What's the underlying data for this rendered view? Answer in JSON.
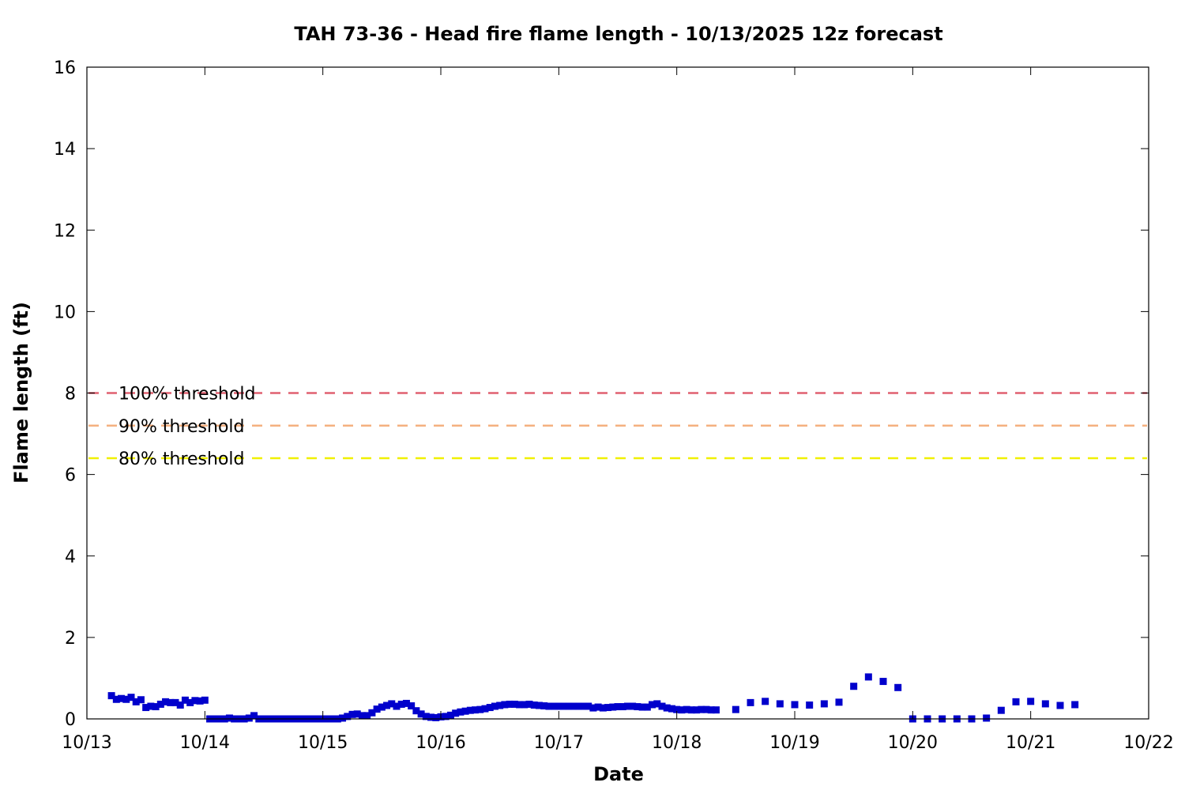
{
  "chart_data": {
    "type": "scatter",
    "title": "TAH 73-36 - Head fire flame length - 10/13/2025 12z forecast",
    "xlabel": "Date",
    "ylabel": "Flame length (ft)",
    "x_ticks": [
      "10/13",
      "10/14",
      "10/15",
      "10/16",
      "10/17",
      "10/18",
      "10/19",
      "10/20",
      "10/21",
      "10/22"
    ],
    "x_range_days": [
      "10/13",
      "10/22"
    ],
    "ylim": [
      0,
      16
    ],
    "y_ticks": [
      0,
      2,
      4,
      6,
      8,
      10,
      12,
      14,
      16
    ],
    "grid": false,
    "legend": "top-left",
    "marker_color": "#0000cc",
    "thresholds": [
      {
        "label": "100% threshold",
        "value": 8.0,
        "color": "#e06070"
      },
      {
        "label": "90% threshold",
        "value": 7.2,
        "color": "#f4b080"
      },
      {
        "label": "80% threshold",
        "value": 6.4,
        "color": "#f0f000"
      }
    ],
    "points": [
      [
        "10/13 05:00",
        0.57
      ],
      [
        "10/13 06:00",
        0.48
      ],
      [
        "10/13 07:00",
        0.5
      ],
      [
        "10/13 08:00",
        0.48
      ],
      [
        "10/13 09:00",
        0.53
      ],
      [
        "10/13 10:00",
        0.42
      ],
      [
        "10/13 11:00",
        0.47
      ],
      [
        "10/13 12:00",
        0.28
      ],
      [
        "10/13 13:00",
        0.31
      ],
      [
        "10/13 14:00",
        0.3
      ],
      [
        "10/13 15:00",
        0.36
      ],
      [
        "10/13 16:00",
        0.42
      ],
      [
        "10/13 17:00",
        0.4
      ],
      [
        "10/13 18:00",
        0.4
      ],
      [
        "10/13 19:00",
        0.34
      ],
      [
        "10/13 20:00",
        0.46
      ],
      [
        "10/13 21:00",
        0.4
      ],
      [
        "10/13 22:00",
        0.45
      ],
      [
        "10/13 23:00",
        0.44
      ],
      [
        "10/14 00:00",
        0.46
      ],
      [
        "10/14 01:00",
        0.0
      ],
      [
        "10/14 02:00",
        0.0
      ],
      [
        "10/14 03:00",
        0.0
      ],
      [
        "10/14 04:00",
        0.0
      ],
      [
        "10/14 05:00",
        0.02
      ],
      [
        "10/14 06:00",
        0.0
      ],
      [
        "10/14 07:00",
        0.0
      ],
      [
        "10/14 08:00",
        0.0
      ],
      [
        "10/14 09:00",
        0.02
      ],
      [
        "10/14 10:00",
        0.08
      ],
      [
        "10/14 11:00",
        0.0
      ],
      [
        "10/14 12:00",
        0.0
      ],
      [
        "10/14 13:00",
        0.0
      ],
      [
        "10/14 14:00",
        0.0
      ],
      [
        "10/14 15:00",
        0.0
      ],
      [
        "10/14 16:00",
        0.0
      ],
      [
        "10/14 17:00",
        0.0
      ],
      [
        "10/14 18:00",
        0.0
      ],
      [
        "10/14 19:00",
        0.0
      ],
      [
        "10/14 20:00",
        0.0
      ],
      [
        "10/14 21:00",
        0.0
      ],
      [
        "10/14 22:00",
        0.0
      ],
      [
        "10/14 23:00",
        0.0
      ],
      [
        "10/15 00:00",
        0.0
      ],
      [
        "10/15 01:00",
        0.0
      ],
      [
        "10/15 02:00",
        0.0
      ],
      [
        "10/15 03:00",
        0.0
      ],
      [
        "10/15 04:00",
        0.02
      ],
      [
        "10/15 05:00",
        0.06
      ],
      [
        "10/15 06:00",
        0.11
      ],
      [
        "10/15 07:00",
        0.12
      ],
      [
        "10/15 08:00",
        0.08
      ],
      [
        "10/15 09:00",
        0.08
      ],
      [
        "10/15 10:00",
        0.15
      ],
      [
        "10/15 11:00",
        0.24
      ],
      [
        "10/15 12:00",
        0.29
      ],
      [
        "10/15 13:00",
        0.33
      ],
      [
        "10/15 14:00",
        0.37
      ],
      [
        "10/15 15:00",
        0.31
      ],
      [
        "10/15 16:00",
        0.36
      ],
      [
        "10/15 17:00",
        0.38
      ],
      [
        "10/15 18:00",
        0.32
      ],
      [
        "10/15 19:00",
        0.2
      ],
      [
        "10/15 20:00",
        0.12
      ],
      [
        "10/15 21:00",
        0.06
      ],
      [
        "10/15 22:00",
        0.04
      ],
      [
        "10/15 23:00",
        0.03
      ],
      [
        "10/16 00:00",
        0.05
      ],
      [
        "10/16 01:00",
        0.06
      ],
      [
        "10/16 02:00",
        0.09
      ],
      [
        "10/16 03:00",
        0.14
      ],
      [
        "10/16 04:00",
        0.17
      ],
      [
        "10/16 05:00",
        0.19
      ],
      [
        "10/16 06:00",
        0.21
      ],
      [
        "10/16 07:00",
        0.22
      ],
      [
        "10/16 08:00",
        0.23
      ],
      [
        "10/16 09:00",
        0.25
      ],
      [
        "10/16 10:00",
        0.28
      ],
      [
        "10/16 11:00",
        0.31
      ],
      [
        "10/16 12:00",
        0.33
      ],
      [
        "10/16 13:00",
        0.35
      ],
      [
        "10/16 14:00",
        0.36
      ],
      [
        "10/16 15:00",
        0.36
      ],
      [
        "10/16 16:00",
        0.35
      ],
      [
        "10/16 17:00",
        0.35
      ],
      [
        "10/16 18:00",
        0.36
      ],
      [
        "10/16 19:00",
        0.34
      ],
      [
        "10/16 20:00",
        0.33
      ],
      [
        "10/16 21:00",
        0.32
      ],
      [
        "10/16 22:00",
        0.31
      ],
      [
        "10/16 23:00",
        0.31
      ],
      [
        "10/17 00:00",
        0.31
      ],
      [
        "10/17 01:00",
        0.31
      ],
      [
        "10/17 02:00",
        0.31
      ],
      [
        "10/17 03:00",
        0.31
      ],
      [
        "10/17 04:00",
        0.31
      ],
      [
        "10/17 05:00",
        0.31
      ],
      [
        "10/17 06:00",
        0.31
      ],
      [
        "10/17 07:00",
        0.27
      ],
      [
        "10/17 08:00",
        0.29
      ],
      [
        "10/17 09:00",
        0.27
      ],
      [
        "10/17 10:00",
        0.28
      ],
      [
        "10/17 11:00",
        0.29
      ],
      [
        "10/17 12:00",
        0.3
      ],
      [
        "10/17 13:00",
        0.3
      ],
      [
        "10/17 14:00",
        0.31
      ],
      [
        "10/17 15:00",
        0.31
      ],
      [
        "10/17 16:00",
        0.3
      ],
      [
        "10/17 17:00",
        0.29
      ],
      [
        "10/17 18:00",
        0.29
      ],
      [
        "10/17 19:00",
        0.35
      ],
      [
        "10/17 20:00",
        0.37
      ],
      [
        "10/17 21:00",
        0.31
      ],
      [
        "10/17 22:00",
        0.27
      ],
      [
        "10/17 23:00",
        0.25
      ],
      [
        "10/18 00:00",
        0.23
      ],
      [
        "10/18 01:00",
        0.22
      ],
      [
        "10/18 02:00",
        0.23
      ],
      [
        "10/18 03:00",
        0.22
      ],
      [
        "10/18 04:00",
        0.22
      ],
      [
        "10/18 05:00",
        0.23
      ],
      [
        "10/18 06:00",
        0.23
      ],
      [
        "10/18 07:00",
        0.22
      ],
      [
        "10/18 08:00",
        0.22
      ],
      [
        "10/18 12:00",
        0.23
      ],
      [
        "10/18 15:00",
        0.4
      ],
      [
        "10/18 18:00",
        0.43
      ],
      [
        "10/18 21:00",
        0.37
      ],
      [
        "10/19 00:00",
        0.35
      ],
      [
        "10/19 03:00",
        0.34
      ],
      [
        "10/19 06:00",
        0.37
      ],
      [
        "10/19 09:00",
        0.41
      ],
      [
        "10/19 12:00",
        0.8
      ],
      [
        "10/19 15:00",
        1.03
      ],
      [
        "10/19 18:00",
        0.92
      ],
      [
        "10/19 21:00",
        0.77
      ],
      [
        "10/20 00:00",
        0.0
      ],
      [
        "10/20 03:00",
        0.0
      ],
      [
        "10/20 06:00",
        0.0
      ],
      [
        "10/20 09:00",
        0.0
      ],
      [
        "10/20 12:00",
        0.0
      ],
      [
        "10/20 15:00",
        0.02
      ],
      [
        "10/20 18:00",
        0.21
      ],
      [
        "10/20 21:00",
        0.42
      ],
      [
        "10/21 00:00",
        0.43
      ],
      [
        "10/21 03:00",
        0.37
      ],
      [
        "10/21 06:00",
        0.33
      ],
      [
        "10/21 09:00",
        0.35
      ]
    ]
  }
}
